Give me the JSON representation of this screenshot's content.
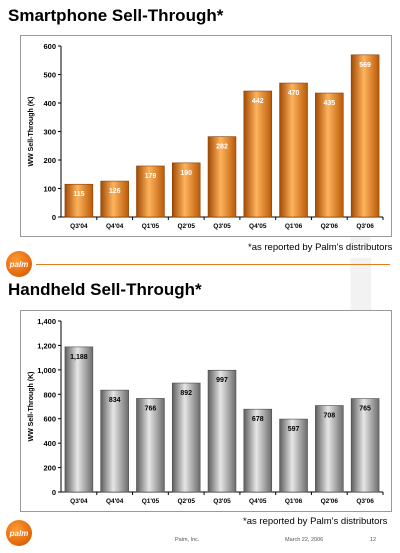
{
  "top": {
    "title": "Smartphone Sell-Through*",
    "footnote": "*as reported by Palm's distributors",
    "logo_text": "palm"
  },
  "bottom": {
    "title": "Handheld Sell-Through*",
    "footnote": "*as reported by Palm's distributors",
    "logo_text": "palm"
  },
  "footer": {
    "company": "Palm, Inc.",
    "date": "March 22, 2006",
    "page": "12"
  },
  "colors": {
    "orange_bar": "#e8821a",
    "gray_bar": "#9a9a9a",
    "accent_rule": "#e07c1e"
  },
  "chart_data": [
    {
      "type": "bar",
      "title": "Smartphone Sell-Through*",
      "xlabel": "",
      "ylabel": "WW Sell-Through (K)",
      "categories": [
        "Q3'04",
        "Q4'04",
        "Q1'05",
        "Q2'05",
        "Q3'05",
        "Q4'05",
        "Q1'06",
        "Q2'06",
        "Q3'06"
      ],
      "values": [
        115,
        126,
        179,
        190,
        282,
        442,
        470,
        435,
        569
      ],
      "data_labels": [
        "115",
        "126",
        "179",
        "190",
        "282",
        "442",
        "470",
        "435",
        "569"
      ],
      "ylim": [
        0,
        600
      ],
      "yticks": [
        0,
        100,
        200,
        300,
        400,
        500,
        600
      ],
      "ytick_labels": [
        "0",
        "100",
        "200",
        "300",
        "400",
        "500",
        "600"
      ],
      "grid": false,
      "bar_color": "#e8821a"
    },
    {
      "type": "bar",
      "title": "Handheld Sell-Through*",
      "xlabel": "",
      "ylabel": "WW Sell-Through (K)",
      "categories": [
        "Q3'04",
        "Q4'04",
        "Q1'05",
        "Q2'05",
        "Q3'05",
        "Q4'05",
        "Q1'06",
        "Q2'06",
        "Q3'06"
      ],
      "values": [
        1188,
        834,
        766,
        892,
        997,
        678,
        597,
        708,
        765
      ],
      "data_labels": [
        "1,188",
        "834",
        "766",
        "892",
        "997",
        "678",
        "597",
        "708",
        "765"
      ],
      "ylim": [
        0,
        1400
      ],
      "yticks": [
        0,
        200,
        400,
        600,
        800,
        1000,
        1200,
        1400
      ],
      "ytick_labels": [
        "0",
        "200",
        "400",
        "600",
        "800",
        "1,000",
        "1,200",
        "1,400"
      ],
      "grid": false,
      "bar_color": "#9a9a9a"
    }
  ]
}
